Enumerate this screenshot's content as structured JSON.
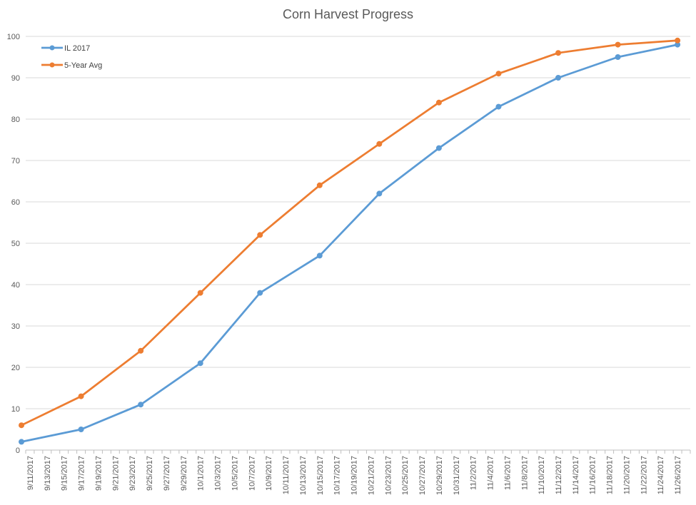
{
  "chart_data": {
    "type": "line",
    "title": "Corn Harvest Progress",
    "xlabel": "",
    "ylabel": "",
    "ylim": [
      0,
      100
    ],
    "yticks": [
      0,
      10,
      20,
      30,
      40,
      50,
      60,
      70,
      80,
      90,
      100
    ],
    "grid": "horizontal",
    "legend_position": "top-left",
    "x_tick_labels": [
      "9/11/2017",
      "9/13/2017",
      "9/15/2017",
      "9/17/2017",
      "9/19/2017",
      "9/21/2017",
      "9/23/2017",
      "9/25/2017",
      "9/27/2017",
      "9/29/2017",
      "10/1/2017",
      "10/3/2017",
      "10/5/2017",
      "10/7/2017",
      "10/9/2017",
      "10/11/2017",
      "10/13/2017",
      "10/15/2017",
      "10/17/2017",
      "10/19/2017",
      "10/21/2017",
      "10/23/2017",
      "10/25/2017",
      "10/27/2017",
      "10/29/2017",
      "10/31/2017",
      "11/2/2017",
      "11/4/2017",
      "11/6/2017",
      "11/8/2017",
      "11/10/2017",
      "11/12/2017",
      "11/14/2017",
      "11/16/2017",
      "11/18/2017",
      "11/20/2017",
      "11/22/2017",
      "11/24/2017",
      "11/26/2017"
    ],
    "x": [
      "2017-09-10",
      "2017-09-17",
      "2017-09-24",
      "2017-10-01",
      "2017-10-08",
      "2017-10-15",
      "2017-10-22",
      "2017-10-29",
      "2017-11-05",
      "2017-11-12",
      "2017-11-19",
      "2017-11-26"
    ],
    "series": [
      {
        "name": "IL 2017",
        "color": "#5B9BD5",
        "values": [
          2,
          5,
          11,
          21,
          38,
          47,
          62,
          73,
          83,
          90,
          95,
          98
        ]
      },
      {
        "name": "5-Year Avg",
        "color": "#ED7D31",
        "values": [
          6,
          13,
          24,
          38,
          52,
          64,
          74,
          84,
          91,
          96,
          98,
          99
        ]
      }
    ]
  }
}
